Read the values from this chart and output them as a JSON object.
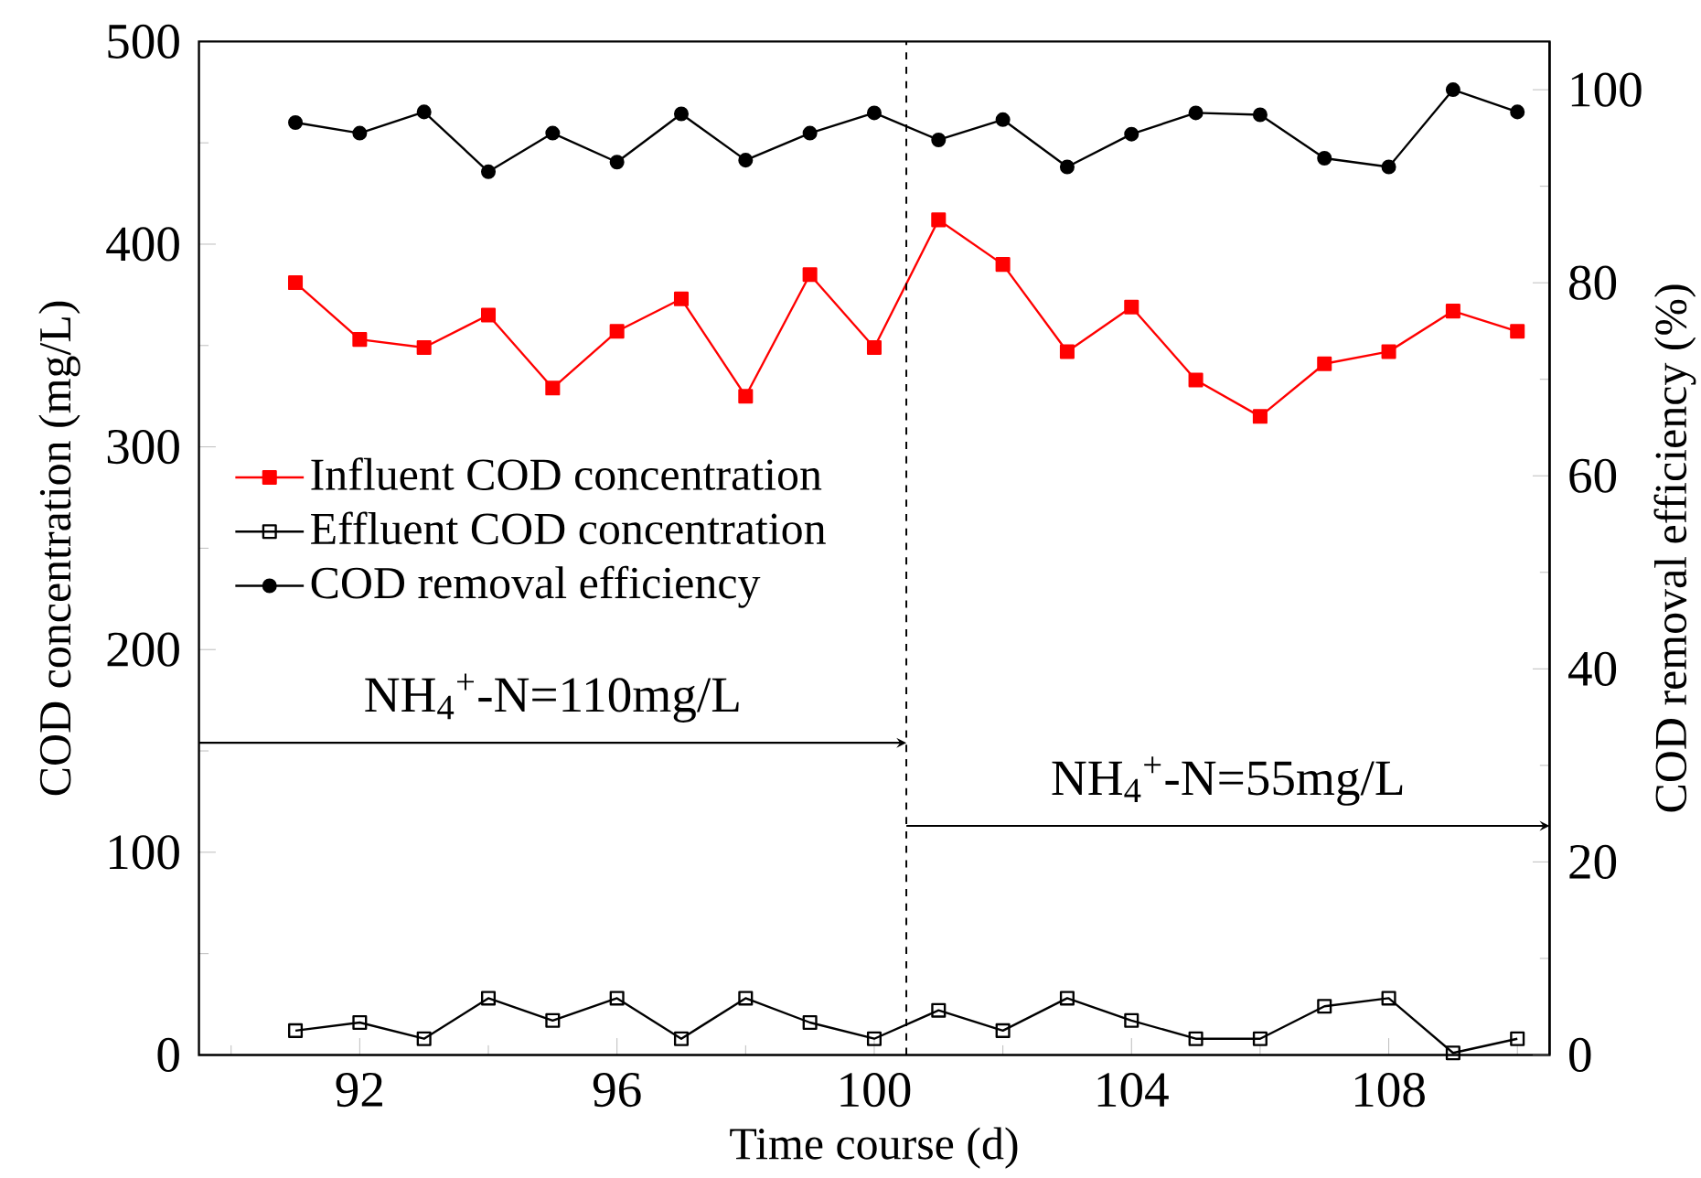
{
  "chart_data": {
    "type": "line",
    "xlabel": "Time course (d)",
    "ylabel": "COD concentration (mg/L)",
    "y2label": "COD removal efficiency (%)",
    "x": [
      91,
      92,
      93,
      94,
      95,
      96,
      97,
      98,
      99,
      100,
      101,
      102,
      103,
      104,
      105,
      106,
      107,
      108,
      109,
      110
    ],
    "xlim": [
      89.5,
      110.5
    ],
    "xticks": [
      {
        "value": 90,
        "label": null
      },
      92,
      {
        "value": 94,
        "label": null
      },
      96,
      {
        "value": 98,
        "label": null
      },
      100,
      {
        "value": 102,
        "label": null
      },
      104,
      {
        "value": 106,
        "label": null
      },
      108,
      {
        "value": 110,
        "label": null
      }
    ],
    "ylim": [
      0,
      500
    ],
    "yticks": [
      0,
      {
        "value": 50,
        "label": null
      },
      100,
      {
        "value": 150,
        "label": null
      },
      200,
      {
        "value": 250,
        "label": null
      },
      300,
      {
        "value": 350,
        "label": null
      },
      400,
      {
        "value": 450,
        "label": null
      },
      500
    ],
    "y2lim": [
      0,
      105
    ],
    "y2ticks": [
      0,
      {
        "value": 10,
        "label": null
      },
      20,
      {
        "value": 30,
        "label": null
      },
      40,
      {
        "value": 50,
        "label": null
      },
      60,
      {
        "value": 70,
        "label": null
      },
      80,
      {
        "value": 90,
        "label": null
      },
      100
    ],
    "series": [
      {
        "name": "Influent COD concentration",
        "color": "#ff0000",
        "marker": "square",
        "values": [
          381,
          353,
          349,
          365,
          329,
          357,
          373,
          325,
          385,
          349,
          412,
          390,
          347,
          369,
          333,
          315,
          341,
          347,
          367,
          357
        ]
      },
      {
        "name": "Effluent COD concentration",
        "color": "#000000",
        "marker": "square",
        "values": [
          12,
          16,
          8,
          28,
          17,
          28,
          8,
          28,
          16,
          8,
          22,
          12,
          28,
          17,
          8,
          8,
          24,
          28,
          1,
          8
        ]
      },
      {
        "name": "COD removal efficiency",
        "color": "#000000",
        "marker": "circle",
        "axis": "y2",
        "values": [
          96.6,
          95.5,
          97.7,
          91.5,
          95.5,
          92.5,
          97.5,
          92.7,
          95.5,
          97.6,
          94.8,
          96.9,
          92.0,
          95.4,
          97.6,
          97.4,
          92.9,
          92.0,
          100,
          97.7
        ]
      }
    ],
    "ref_lines": [
      {
        "axis": "x",
        "value": 100.5,
        "line_style": "dashed",
        "color": "#000000"
      }
    ],
    "annotations": [
      "NH$_{4}$$^{+}$-N=110mg/L",
      "NH$_{4}$$^{+}$-N=55mg/L"
    ],
    "legend": "left",
    "grid": false
  }
}
